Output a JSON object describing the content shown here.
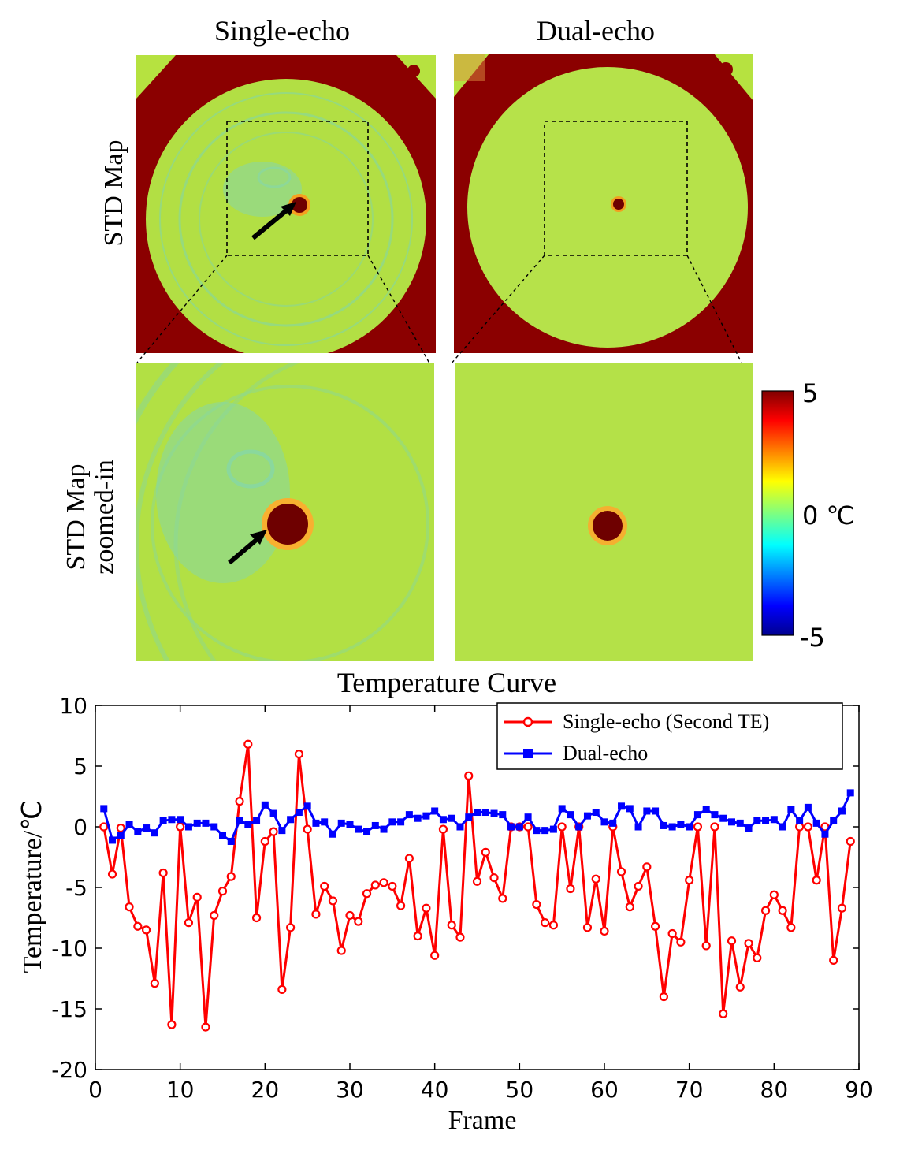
{
  "panels": {
    "col_titles": [
      "Single-echo",
      "Dual-echo"
    ],
    "row_labels": {
      "std_map": "STD Map",
      "zoomed_line1": "STD Map",
      "zoomed_line2": "zoomed-in"
    },
    "colorbar": {
      "max_label": "5",
      "mid_label": "0 ℃",
      "min_label": "-5"
    },
    "colors": {
      "background": "#b2e03e",
      "ring": "#8a0000",
      "hot": "#6e0000",
      "ripple": "#86d79a"
    }
  },
  "chart_data": {
    "type": "line",
    "title": "Temperature Curve",
    "xlabel": "Frame",
    "ylabel": "Temperature/℃",
    "xlim": [
      0,
      90
    ],
    "ylim": [
      -20,
      10
    ],
    "xticks": [
      0,
      10,
      20,
      30,
      40,
      50,
      60,
      70,
      80,
      90
    ],
    "yticks": [
      10,
      5,
      0,
      -5,
      -10,
      -15,
      -20
    ],
    "legend_position": "top-right",
    "series": [
      {
        "name": "Single-echo (Second TE)",
        "color": "#ff0000",
        "marker": "circle",
        "x": [
          1,
          2,
          3,
          4,
          5,
          6,
          7,
          8,
          9,
          10,
          11,
          12,
          13,
          14,
          15,
          16,
          17,
          18,
          19,
          20,
          21,
          22,
          23,
          24,
          25,
          26,
          27,
          28,
          29,
          30,
          31,
          32,
          33,
          34,
          35,
          36,
          37,
          38,
          39,
          40,
          41,
          42,
          43,
          44,
          45,
          46,
          47,
          48,
          49,
          50,
          51,
          52,
          53,
          54,
          55,
          56,
          57,
          58,
          59,
          60,
          61,
          62,
          63,
          64,
          65,
          66,
          67,
          68,
          69,
          70,
          71,
          72,
          73,
          74,
          75,
          76,
          77,
          78,
          79,
          80,
          81,
          82,
          83,
          84,
          85,
          86,
          87,
          88,
          89
        ],
        "values": [
          0,
          -3.9,
          -0.1,
          -6.6,
          -8.2,
          -8.5,
          -12.9,
          -3.8,
          -16.3,
          0,
          -7.9,
          -5.8,
          -16.5,
          -7.3,
          -5.3,
          -4.1,
          2.1,
          6.8,
          -7.5,
          -1.2,
          -0.4,
          -13.4,
          -8.3,
          6,
          -0.2,
          -7.2,
          -4.9,
          -6.1,
          -10.2,
          -7.3,
          -7.8,
          -5.5,
          -4.8,
          -4.6,
          -4.9,
          -6.5,
          -2.6,
          -9,
          -6.7,
          -10.6,
          -0.2,
          -8.1,
          -9.1,
          4.2,
          -4.5,
          -2.1,
          -4.2,
          -5.9,
          0,
          0,
          0,
          -6.4,
          -7.9,
          -8.1,
          0,
          -5.1,
          0,
          -8.3,
          -4.3,
          -8.6,
          0,
          -3.7,
          -6.6,
          -4.9,
          -3.3,
          -8.2,
          -14,
          -8.8,
          -9.5,
          -4.4,
          0,
          -9.8,
          0,
          -15.4,
          -9.4,
          -13.2,
          -9.6,
          -10.8,
          -6.9,
          -5.6,
          -6.9,
          -8.3,
          0,
          0,
          -4.4,
          0,
          -11,
          -6.7,
          -1.2
        ]
      },
      {
        "name": "Dual-echo",
        "color": "#0000ff",
        "marker": "x",
        "x": [
          1,
          2,
          3,
          4,
          5,
          6,
          7,
          8,
          9,
          10,
          11,
          12,
          13,
          14,
          15,
          16,
          17,
          18,
          19,
          20,
          21,
          22,
          23,
          24,
          25,
          26,
          27,
          28,
          29,
          30,
          31,
          32,
          33,
          34,
          35,
          36,
          37,
          38,
          39,
          40,
          41,
          42,
          43,
          44,
          45,
          46,
          47,
          48,
          49,
          50,
          51,
          52,
          53,
          54,
          55,
          56,
          57,
          58,
          59,
          60,
          61,
          62,
          63,
          64,
          65,
          66,
          67,
          68,
          69,
          70,
          71,
          72,
          73,
          74,
          75,
          76,
          77,
          78,
          79,
          80,
          81,
          82,
          83,
          84,
          85,
          86,
          87,
          88,
          89
        ],
        "values": [
          1.5,
          -1.1,
          -0.7,
          0.2,
          -0.4,
          -0.1,
          -0.5,
          0.5,
          0.6,
          0.6,
          0,
          0.3,
          0.3,
          0,
          -0.7,
          -1.2,
          0.5,
          0.2,
          0.5,
          1.8,
          1.1,
          -0.3,
          0.6,
          1.2,
          1.7,
          0.3,
          0.4,
          -0.6,
          0.3,
          0.2,
          -0.2,
          -0.4,
          0.1,
          -0.2,
          0.4,
          0.4,
          1,
          0.7,
          0.9,
          1.3,
          0.6,
          0.7,
          0,
          0.8,
          1.2,
          1.2,
          1.1,
          1,
          0,
          0,
          0.8,
          -0.3,
          -0.3,
          -0.2,
          1.5,
          1,
          0,
          0.9,
          1.2,
          0.4,
          0.3,
          1.7,
          1.5,
          0,
          1.3,
          1.3,
          0.1,
          0,
          0.2,
          0,
          1,
          1.4,
          1,
          0.7,
          0.4,
          0.3,
          -0.1,
          0.5,
          0.5,
          0.6,
          0,
          1.4,
          0.5,
          1.6,
          0.3,
          -0.6,
          0.5,
          1.3,
          2.8
        ]
      }
    ]
  }
}
